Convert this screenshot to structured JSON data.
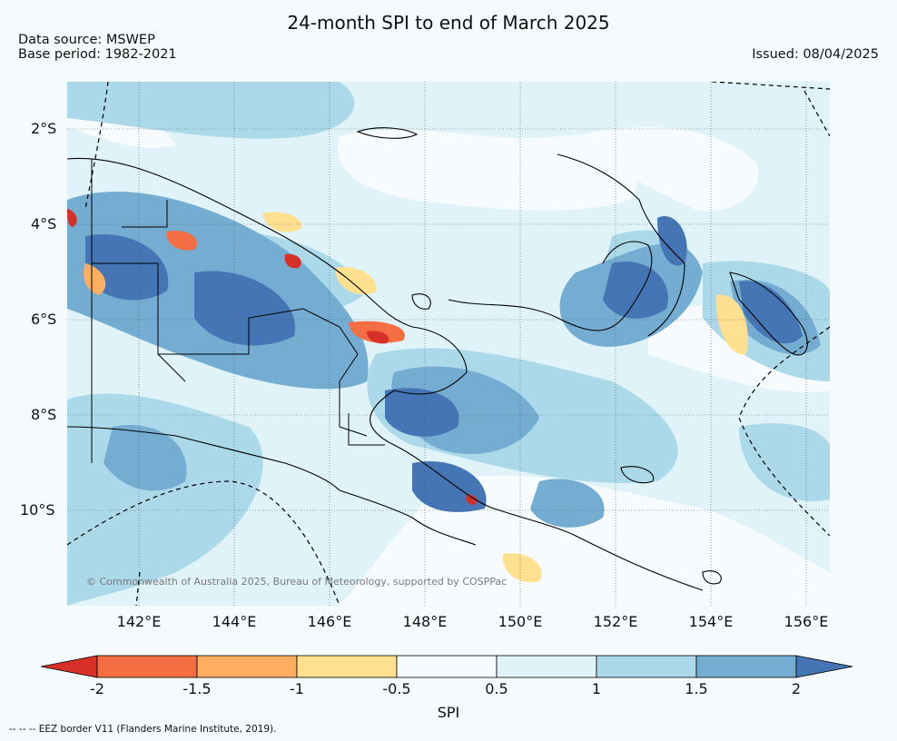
{
  "title": "24-month SPI to end of March 2025",
  "data_source": "Data source: MSWEP",
  "base_period": "Base period: 1982-2021",
  "issued": "Issued: 08/04/2025",
  "credit": "© Commonwealth of Australia 2025, Bureau of Meteorology, supported by COSPPac",
  "lat_labels": [
    "2°S",
    "4°S",
    "6°S",
    "8°S",
    "10°S"
  ],
  "lon_labels": [
    "142°E",
    "144°E",
    "146°E",
    "148°E",
    "150°E",
    "152°E",
    "154°E",
    "156°E"
  ],
  "colorbar": {
    "label": "SPI",
    "ticks": [
      "-2",
      "-1.5",
      "-1",
      "-0.5",
      "0.5",
      "1",
      "1.5",
      "2"
    ],
    "colors": [
      "#d73027",
      "#f46d43",
      "#fdae61",
      "#fee090",
      "#f7fbfd",
      "#e0f3f8",
      "#abd9e9",
      "#74add1",
      "#4575b4"
    ]
  },
  "footnote": "-- -- -- EEZ border V11 (Flanders Marine Institute, 2019)."
}
